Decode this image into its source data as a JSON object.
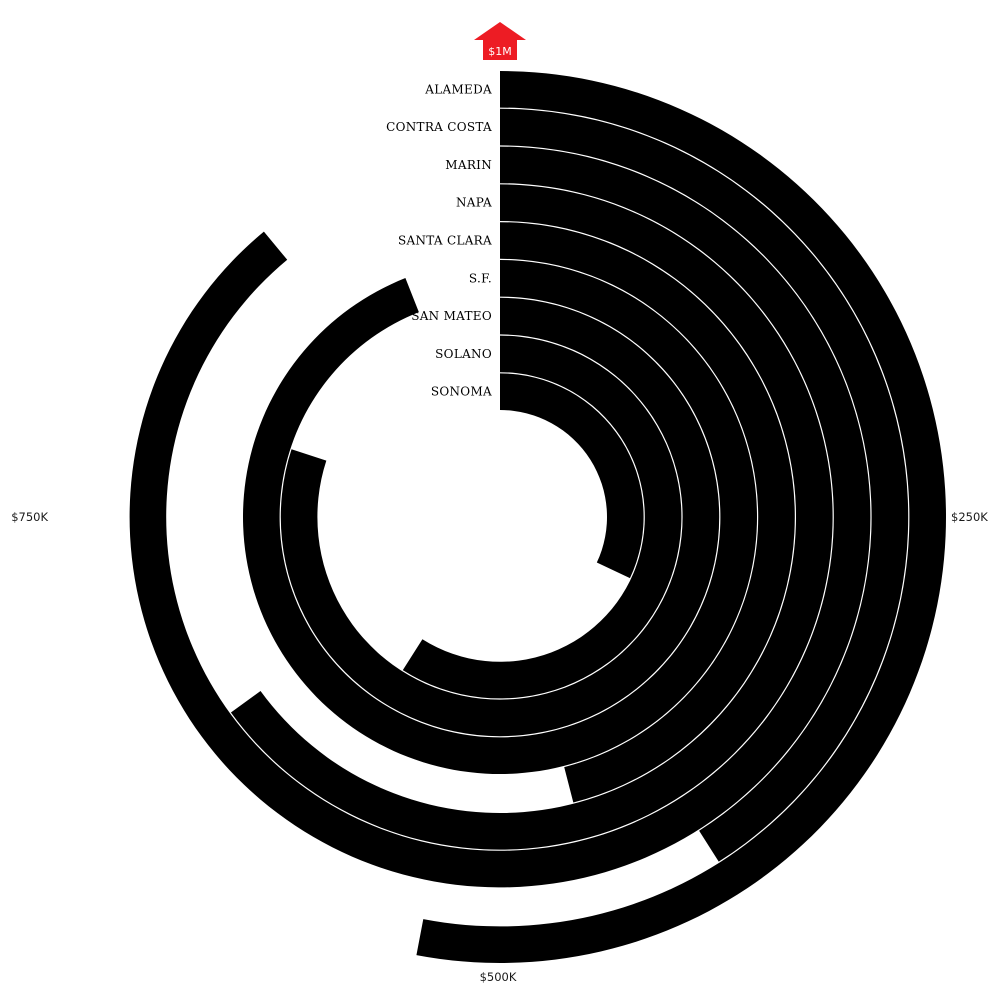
{
  "chart_data": {
    "type": "radial-bar",
    "title": "",
    "max_label": "$1M",
    "max_value": 1000000,
    "axis_labels": [
      {
        "value": 250000,
        "label": "$250K"
      },
      {
        "value": 500000,
        "label": "$500K"
      },
      {
        "value": 750000,
        "label": "$750K"
      }
    ],
    "categories": [
      "ALAMEDA",
      "CONTRA COSTA",
      "MARIN",
      "NAPA",
      "SANTA CLARA",
      "S.F.",
      "SAN MATEO",
      "SOLANO",
      "SONOMA"
    ],
    "values": [
      530000,
      410000,
      890000,
      650000,
      460000,
      940000,
      800000,
      590000,
      320000
    ],
    "colors": {
      "bar": "#000000",
      "marker": "#ed1c24",
      "background": "#ffffff"
    }
  }
}
